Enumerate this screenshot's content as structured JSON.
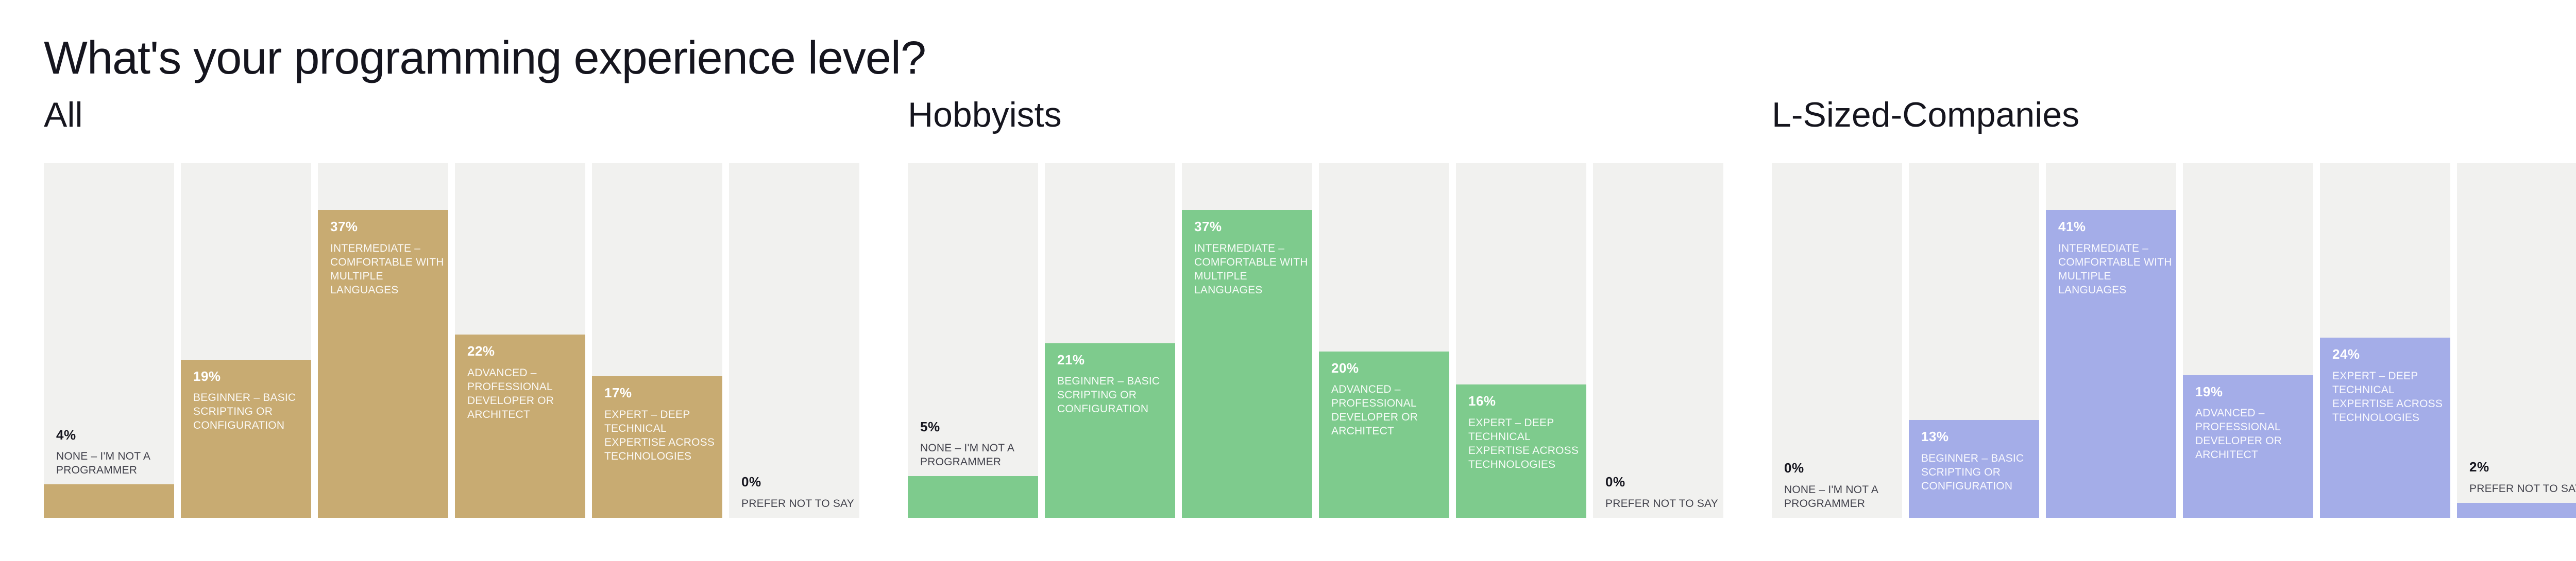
{
  "title": "What's your programming experience level?",
  "styles": {
    "background": "#ffffff",
    "column_background": "#f1f1ef",
    "text_dark": "#15151e",
    "text_muted": "#41414b",
    "text_light": "#ffffff"
  },
  "chart_data": {
    "type": "bar",
    "unit": "%",
    "grid": false,
    "legend": "none",
    "orientation": "vertical",
    "value_labels": "percentage and category shown at top of each bar; inside bar when tall, above bar when short",
    "scaling": "bars normalized per panel: tallest bar in each panel reaches ~87% of column height",
    "column_background": "#f1f1ef",
    "categories": [
      "NONE – I'M NOT A PROGRAMMER",
      "BEGINNER – BASIC SCRIPTING OR CONFIGURATION",
      "INTERMEDIATE – COMFORTABLE WITH MULTIPLE LANGUAGES",
      "ADVANCED – PROFESSIONAL DEVELOPER OR ARCHITECT",
      "EXPERT – DEEP TECHNICAL EXPERTISE ACROSS TECHNOLOGIES",
      "PREFER NOT TO SAY"
    ],
    "panels": [
      {
        "title": "All",
        "color": "#c8ab72",
        "values": [
          4,
          19,
          37,
          22,
          17,
          0
        ]
      },
      {
        "title": "Hobbyists",
        "color": "#7ecb8d",
        "values": [
          5,
          21,
          37,
          20,
          16,
          0
        ]
      },
      {
        "title": "L-Sized-Companies",
        "color": "#a4ade8",
        "values": [
          0,
          13,
          41,
          19,
          24,
          2
        ]
      }
    ]
  }
}
